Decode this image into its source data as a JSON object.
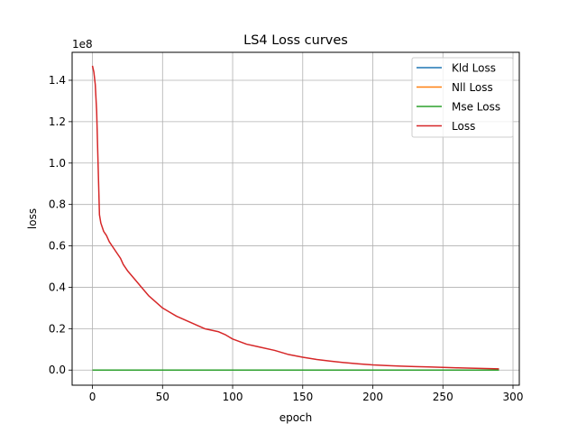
{
  "chart_data": {
    "type": "line",
    "title": "LS4 Loss curves",
    "xlabel": "epoch",
    "ylabel": "loss",
    "y_offset_label": "1e8",
    "y_scale": 100000000,
    "xlim": [
      -14.5,
      304.5
    ],
    "ylim": [
      -7300000,
      153500000
    ],
    "x_ticks": [
      0,
      50,
      100,
      150,
      200,
      250,
      300
    ],
    "x_tick_labels": [
      "0",
      "50",
      "100",
      "150",
      "200",
      "250",
      "300"
    ],
    "y_ticks": [
      0,
      20000000,
      40000000,
      60000000,
      80000000,
      100000000,
      120000000,
      140000000
    ],
    "y_tick_labels": [
      "0.0",
      "0.2",
      "0.4",
      "0.6",
      "0.8",
      "1.0",
      "1.2",
      "1.4"
    ],
    "grid": true,
    "legend_position": "top-right",
    "series": [
      {
        "name": "Kld Loss",
        "color": "#1f77b4",
        "x": [
          0,
          290
        ],
        "y": [
          0,
          0
        ]
      },
      {
        "name": "Nll Loss",
        "color": "#ff7f0e",
        "x": [
          0,
          290
        ],
        "y": [
          0,
          0
        ]
      },
      {
        "name": "Mse Loss",
        "color": "#2ca02c",
        "x": [
          0,
          290
        ],
        "y": [
          0,
          0
        ]
      },
      {
        "name": "Loss",
        "color": "#d62728",
        "x": [
          0,
          1,
          2,
          3,
          4,
          5,
          6,
          8,
          10,
          12,
          15,
          18,
          20,
          22,
          25,
          30,
          35,
          40,
          45,
          50,
          55,
          60,
          70,
          80,
          90,
          95,
          100,
          110,
          120,
          130,
          140,
          150,
          160,
          170,
          180,
          190,
          200,
          210,
          220,
          230,
          240,
          250,
          260,
          270,
          280,
          290
        ],
        "y": [
          147000000,
          144000000,
          138000000,
          125000000,
          100000000,
          75000000,
          71000000,
          67000000,
          65000000,
          62000000,
          59000000,
          56000000,
          54000000,
          51000000,
          48000000,
          44000000,
          40000000,
          36000000,
          33000000,
          30000000,
          28000000,
          26000000,
          23000000,
          20000000,
          18500000,
          17000000,
          15000000,
          12500000,
          11000000,
          9500000,
          7500000,
          6200000,
          5100000,
          4300000,
          3600000,
          3000000,
          2500000,
          2200000,
          1900000,
          1700000,
          1500000,
          1300000,
          1100000,
          900000,
          750000,
          600000
        ]
      }
    ]
  }
}
